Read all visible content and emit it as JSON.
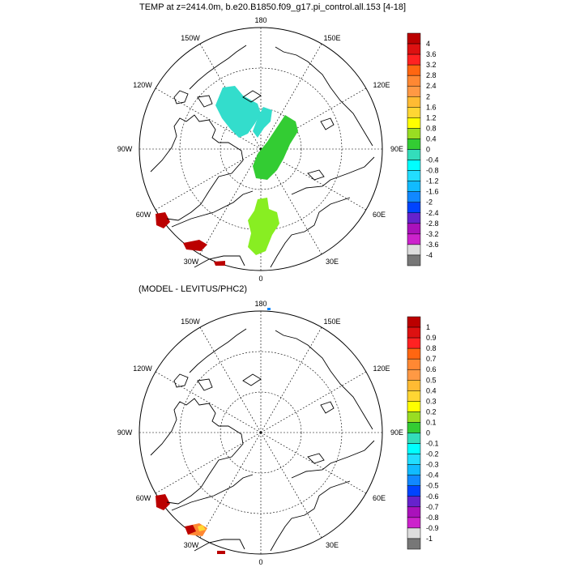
{
  "panel_top": {
    "title": "TEMP at z=2414.0m, b.e20.B1850.f09_g17.pi_control.all.153 [4-18]",
    "colorbar_labels": [
      "4",
      "3.6",
      "3.2",
      "2.8",
      "2.4",
      "2",
      "1.6",
      "1.2",
      "0.8",
      "0.4",
      "0",
      "-0.4",
      "-0.8",
      "-1.2",
      "-1.6",
      "-2",
      "-2.4",
      "-2.8",
      "-3.2",
      "-3.6",
      "-4"
    ]
  },
  "panel_bottom": {
    "title": "(MODEL - LEVITUS/PHC2)",
    "colorbar_labels": [
      "1",
      "0.9",
      "0.8",
      "0.7",
      "0.6",
      "0.5",
      "0.4",
      "0.3",
      "0.2",
      "0.1",
      "0",
      "-0.1",
      "-0.2",
      "-0.3",
      "-0.4",
      "-0.5",
      "-0.6",
      "-0.7",
      "-0.8",
      "-0.9",
      "-1"
    ]
  },
  "longitude_labels": {
    "lon_180": "180",
    "lon_150w": "150W",
    "lon_150e": "150E",
    "lon_120w": "120W",
    "lon_120e": "120E",
    "lon_90w": "90W",
    "lon_90e": "90E",
    "lon_60w": "60W",
    "lon_60e": "60E",
    "lon_30w": "30W",
    "lon_30e": "30E",
    "lon_0": "0"
  },
  "colors": {
    "scale": [
      "#bb0000",
      "#dd1111",
      "#ff2222",
      "#ff6611",
      "#ff8833",
      "#ff9944",
      "#ffbb33",
      "#ffd633",
      "#ffff00",
      "#99dd22",
      "#33cc33",
      "#33ddbb",
      "#00ffff",
      "#22ddff",
      "#11bbff",
      "#1188ff",
      "#0044ff",
      "#6622cc",
      "#aa11bb",
      "#cc22cc",
      "#dddddd",
      "#777777"
    ],
    "coast": "#000000",
    "grid": "#000000"
  }
}
